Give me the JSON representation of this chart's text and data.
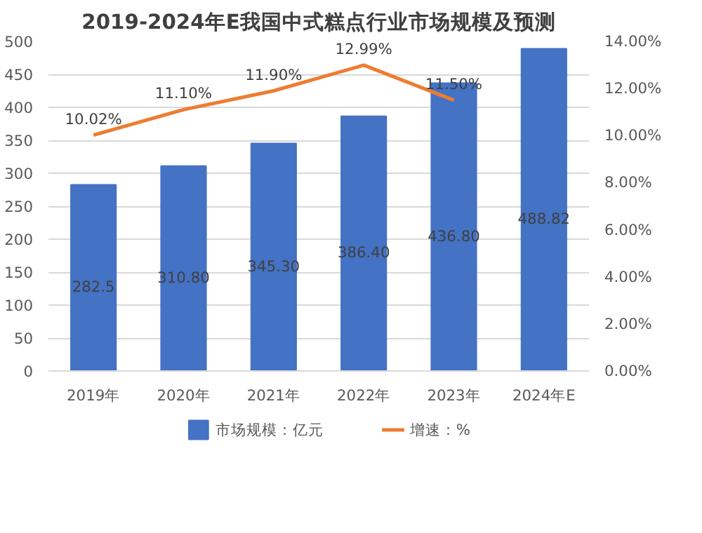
{
  "chart_data": {
    "type": "bar",
    "title": "2019-2024年E我国中式糕点行业市场规模及预测",
    "categories": [
      "2019年",
      "2020年",
      "2021年",
      "2022年",
      "2023年",
      "2024年E"
    ],
    "series": [
      {
        "name": "市场规模：亿元",
        "color": "#4472c4",
        "values": [
          282.5,
          310.8,
          345.3,
          386.4,
          436.8,
          488.82
        ],
        "value_labels": [
          "282.5",
          "310.80",
          "345.30",
          "386.40",
          "436.80",
          "488.82"
        ]
      },
      {
        "name": "增速：%",
        "type": "line",
        "axis": "y2",
        "color": "#ed7d31",
        "values": [
          10.02,
          11.1,
          11.9,
          12.99,
          11.5,
          null
        ],
        "value_labels": [
          "10.02%",
          "11.10%",
          "11.90%",
          "12.99%",
          "11.50%",
          null
        ]
      }
    ],
    "ylim": [
      0,
      500
    ],
    "yticks": [
      0,
      50,
      100,
      150,
      200,
      250,
      300,
      350,
      400,
      450,
      500
    ],
    "y2lim": [
      0,
      14
    ],
    "y2ticks": [
      {
        "value": 0,
        "label": "0.00%"
      },
      {
        "value": 2,
        "label": "2.00%"
      },
      {
        "value": 4,
        "label": "4.00%"
      },
      {
        "value": 6,
        "label": "6.00%"
      },
      {
        "value": 8,
        "label": "8.00%"
      },
      {
        "value": 10,
        "label": "10.00%"
      },
      {
        "value": 12,
        "label": "12.00%"
      },
      {
        "value": 14,
        "label": "14.00%"
      }
    ],
    "grid": "y",
    "legend": "bottom",
    "marker": "none",
    "line_style": "solid"
  }
}
